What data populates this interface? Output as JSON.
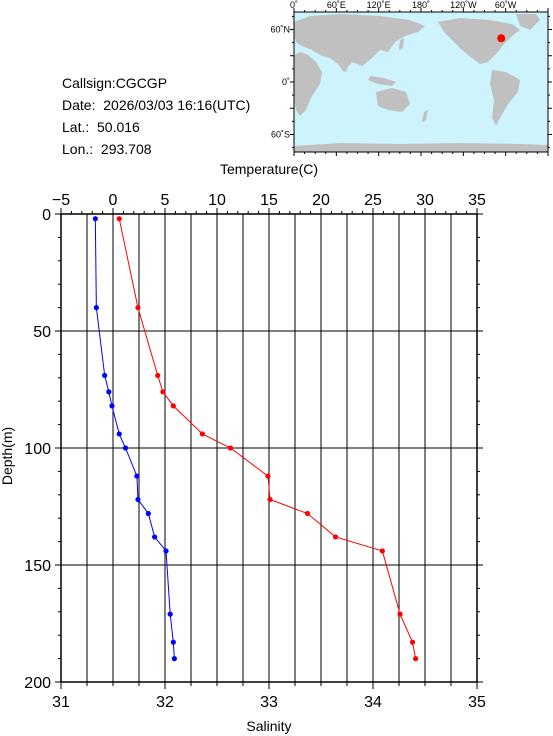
{
  "info": {
    "callsign": "Callsign:CGCGP",
    "date": "Date:  2026/03/03 16:16(UTC)",
    "lat": "Lat.:  50.016",
    "lon": "Lon.:  293.708"
  },
  "map": {
    "lon_labels": [
      "0˚",
      "60˚E",
      "120˚E",
      "180˚",
      "120˚W",
      "60˚W"
    ],
    "lat_labels": [
      "60˚N",
      "0˚",
      "60˚S"
    ],
    "colors": {
      "ocean": "#cdf3fc",
      "land": "#c0c0c0",
      "marker": "#ff0000"
    },
    "marker": {
      "lat": 50.016,
      "lon": 293.708
    }
  },
  "chart_data": {
    "type": "line",
    "ylabel": "Depth(m)",
    "ylim": [
      200,
      0
    ],
    "yticks": [
      "0",
      "50",
      "100",
      "150",
      "200"
    ],
    "ytick_values": [
      0,
      50,
      100,
      150,
      200
    ],
    "grid": true,
    "top_axis": {
      "label": "Temperature(C)",
      "range": [
        -5,
        35
      ],
      "ticks": [
        "−5",
        "0",
        "5",
        "10",
        "15",
        "20",
        "25",
        "30",
        "35"
      ],
      "tick_values": [
        -5,
        0,
        5,
        10,
        15,
        20,
        25,
        30,
        35
      ]
    },
    "bottom_axis": {
      "label": "Salinity",
      "range": [
        31,
        35
      ],
      "ticks": [
        "31",
        "32",
        "33",
        "34",
        "35"
      ],
      "tick_values": [
        31,
        32,
        33,
        34,
        35
      ]
    },
    "series": [
      {
        "quantity": "temperature",
        "axis": "top",
        "color": "#ff0000",
        "points": [
          {
            "x": 0.6,
            "depth": 2
          },
          {
            "x": 2.4,
            "depth": 40
          },
          {
            "x": 4.3,
            "depth": 69
          },
          {
            "x": 4.8,
            "depth": 76
          },
          {
            "x": 5.8,
            "depth": 82
          },
          {
            "x": 8.6,
            "depth": 94
          },
          {
            "x": 11.3,
            "depth": 100
          },
          {
            "x": 14.9,
            "depth": 112
          },
          {
            "x": 15.1,
            "depth": 122
          },
          {
            "x": 18.7,
            "depth": 128
          },
          {
            "x": 21.4,
            "depth": 138
          },
          {
            "x": 25.9,
            "depth": 144
          },
          {
            "x": 27.6,
            "depth": 171
          },
          {
            "x": 28.8,
            "depth": 183
          },
          {
            "x": 29.1,
            "depth": 190
          }
        ]
      },
      {
        "quantity": "salinity",
        "axis": "bottom",
        "color": "#0000ff",
        "points": [
          {
            "x": 31.33,
            "depth": 2
          },
          {
            "x": 31.34,
            "depth": 40
          },
          {
            "x": 31.42,
            "depth": 69
          },
          {
            "x": 31.46,
            "depth": 76
          },
          {
            "x": 31.49,
            "depth": 82
          },
          {
            "x": 31.56,
            "depth": 94
          },
          {
            "x": 31.62,
            "depth": 100
          },
          {
            "x": 31.73,
            "depth": 112
          },
          {
            "x": 31.74,
            "depth": 122
          },
          {
            "x": 31.84,
            "depth": 128
          },
          {
            "x": 31.9,
            "depth": 138
          },
          {
            "x": 32.01,
            "depth": 144
          },
          {
            "x": 32.05,
            "depth": 171
          },
          {
            "x": 32.08,
            "depth": 183
          },
          {
            "x": 32.09,
            "depth": 190
          }
        ]
      }
    ]
  }
}
